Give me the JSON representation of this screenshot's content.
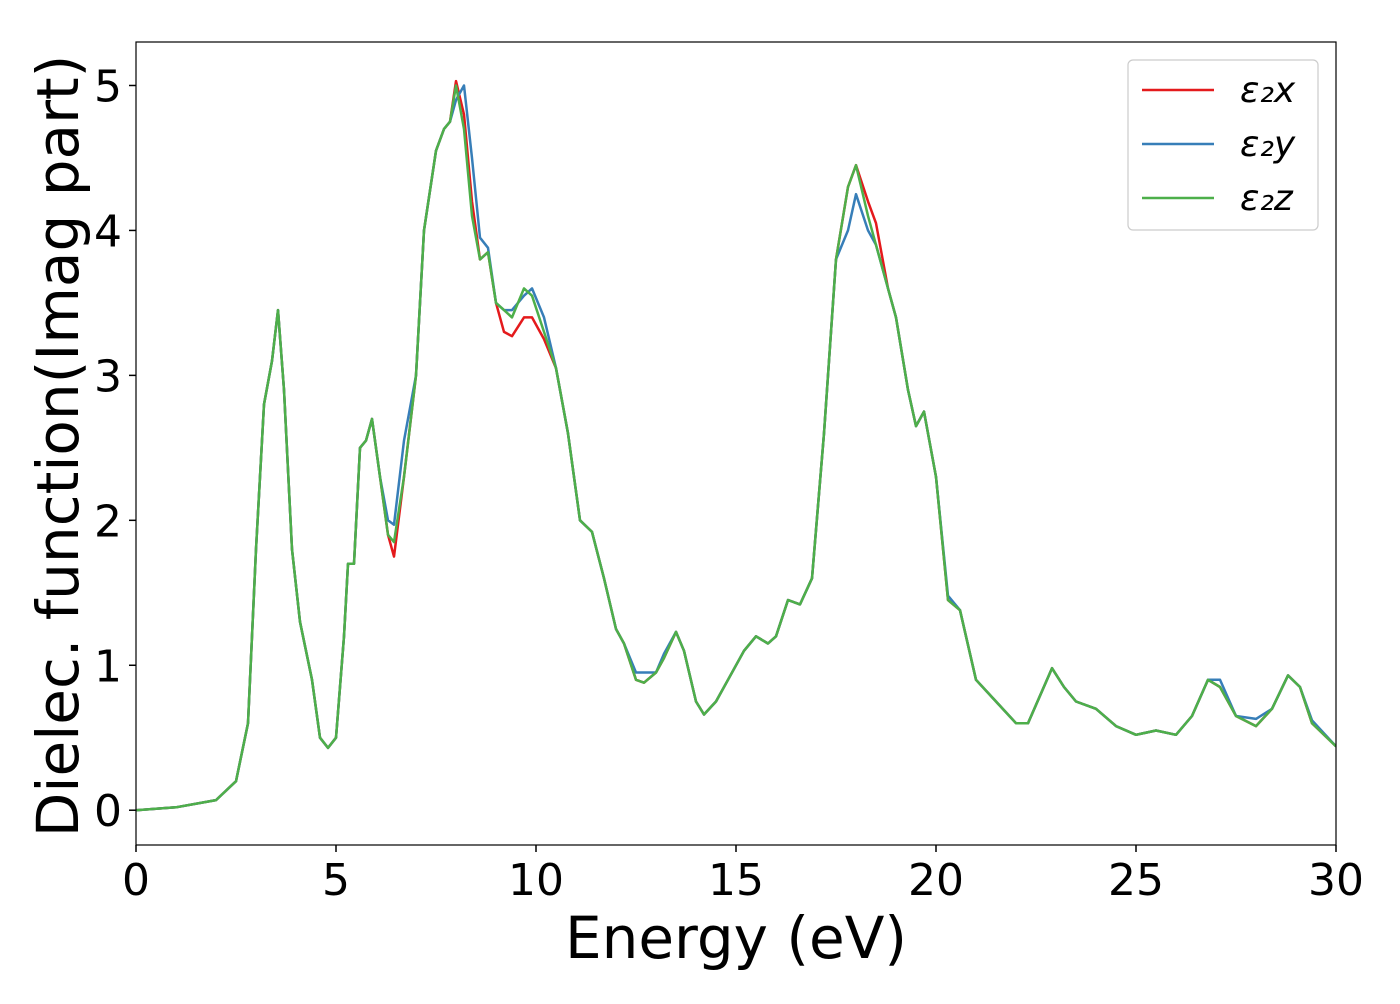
{
  "chart_data": {
    "type": "line",
    "x_label": "Energy (eV)",
    "y_label": "Dielec. function(Imag part)",
    "x": [
      0,
      1,
      2,
      2.5,
      2.8,
      3,
      3.2,
      3.4,
      3.55,
      3.7,
      3.9,
      4.1,
      4.4,
      4.6,
      4.8,
      5,
      5.2,
      5.3,
      5.45,
      5.6,
      5.75,
      5.9,
      6.1,
      6.3,
      6.45,
      6.7,
      7,
      7.2,
      7.5,
      7.7,
      7.85,
      8,
      8.2,
      8.4,
      8.6,
      8.8,
      9,
      9.2,
      9.4,
      9.7,
      9.9,
      10.2,
      10.5,
      10.8,
      11.1,
      11.4,
      11.7,
      12,
      12.2,
      12.5,
      12.7,
      13,
      13.2,
      13.5,
      13.7,
      14,
      14.2,
      14.5,
      14.8,
      15.2,
      15.5,
      15.8,
      16,
      16.3,
      16.6,
      16.9,
      17.2,
      17.5,
      17.8,
      18,
      18.3,
      18.5,
      18.8,
      19,
      19.3,
      19.5,
      19.7,
      20,
      20.3,
      20.6,
      21,
      21.5,
      22,
      22.3,
      22.9,
      23.2,
      23.5,
      24,
      24.5,
      25,
      25.5,
      26,
      26.4,
      26.8,
      27.1,
      27.5,
      28,
      28.4,
      28.8,
      29.1,
      29.4,
      30
    ],
    "series": [
      {
        "name": "ε₂x",
        "color": "#e41a1c",
        "values": [
          0,
          0.02,
          0.07,
          0.2,
          0.6,
          1.8,
          2.8,
          3.1,
          3.45,
          2.9,
          1.8,
          1.3,
          0.9,
          0.5,
          0.43,
          0.5,
          1.2,
          1.7,
          1.7,
          2.5,
          2.55,
          2.7,
          2.3,
          1.9,
          1.75,
          2.3,
          3.0,
          4.0,
          4.55,
          4.7,
          4.75,
          5.03,
          4.8,
          4.2,
          3.8,
          3.85,
          3.5,
          3.3,
          3.27,
          3.4,
          3.4,
          3.25,
          3.05,
          2.6,
          2.0,
          1.92,
          1.6,
          1.25,
          1.15,
          0.9,
          0.88,
          0.95,
          1.05,
          1.23,
          1.1,
          0.75,
          0.66,
          0.75,
          0.9,
          1.1,
          1.2,
          1.15,
          1.2,
          1.45,
          1.42,
          1.6,
          2.6,
          3.8,
          4.3,
          4.45,
          4.2,
          4.05,
          3.6,
          3.4,
          2.9,
          2.65,
          2.75,
          2.3,
          1.45,
          1.38,
          0.9,
          0.75,
          0.6,
          0.6,
          0.98,
          0.85,
          0.75,
          0.7,
          0.58,
          0.52,
          0.55,
          0.52,
          0.65,
          0.9,
          0.85,
          0.65,
          0.58,
          0.7,
          0.93,
          0.85,
          0.6,
          0.44
        ]
      },
      {
        "name": "ε₂y",
        "color": "#377eb8",
        "values": [
          0,
          0.02,
          0.07,
          0.2,
          0.6,
          1.8,
          2.8,
          3.1,
          3.45,
          2.9,
          1.8,
          1.3,
          0.9,
          0.5,
          0.43,
          0.5,
          1.2,
          1.7,
          1.7,
          2.5,
          2.55,
          2.7,
          2.3,
          2.0,
          1.97,
          2.55,
          3.0,
          4.0,
          4.55,
          4.7,
          4.75,
          4.9,
          5.0,
          4.5,
          3.95,
          3.88,
          3.5,
          3.45,
          3.45,
          3.55,
          3.6,
          3.4,
          3.05,
          2.6,
          2.0,
          1.92,
          1.6,
          1.25,
          1.15,
          0.95,
          0.95,
          0.95,
          1.08,
          1.23,
          1.1,
          0.75,
          0.66,
          0.75,
          0.9,
          1.1,
          1.2,
          1.15,
          1.2,
          1.45,
          1.42,
          1.6,
          2.6,
          3.8,
          4.0,
          4.25,
          4.0,
          3.9,
          3.6,
          3.4,
          2.9,
          2.65,
          2.75,
          2.3,
          1.48,
          1.38,
          0.9,
          0.75,
          0.6,
          0.6,
          0.98,
          0.85,
          0.75,
          0.7,
          0.58,
          0.52,
          0.55,
          0.52,
          0.65,
          0.9,
          0.9,
          0.65,
          0.63,
          0.7,
          0.93,
          0.85,
          0.62,
          0.44
        ]
      },
      {
        "name": "ε₂z",
        "color": "#4daf4a",
        "values": [
          0,
          0.02,
          0.07,
          0.2,
          0.6,
          1.8,
          2.8,
          3.1,
          3.45,
          2.9,
          1.8,
          1.3,
          0.9,
          0.5,
          0.43,
          0.5,
          1.2,
          1.7,
          1.7,
          2.5,
          2.55,
          2.7,
          2.3,
          1.9,
          1.85,
          2.3,
          3.0,
          4.0,
          4.55,
          4.7,
          4.75,
          5.0,
          4.7,
          4.1,
          3.8,
          3.85,
          3.5,
          3.45,
          3.4,
          3.6,
          3.55,
          3.3,
          3.05,
          2.6,
          2.0,
          1.92,
          1.6,
          1.25,
          1.15,
          0.9,
          0.88,
          0.95,
          1.05,
          1.23,
          1.1,
          0.75,
          0.66,
          0.75,
          0.9,
          1.1,
          1.2,
          1.15,
          1.2,
          1.45,
          1.42,
          1.6,
          2.6,
          3.8,
          4.3,
          4.45,
          4.1,
          3.9,
          3.6,
          3.4,
          2.9,
          2.65,
          2.75,
          2.3,
          1.45,
          1.38,
          0.9,
          0.75,
          0.6,
          0.6,
          0.98,
          0.85,
          0.75,
          0.7,
          0.58,
          0.52,
          0.55,
          0.52,
          0.65,
          0.9,
          0.85,
          0.65,
          0.58,
          0.7,
          0.93,
          0.85,
          0.6,
          0.44
        ]
      }
    ],
    "xlim": [
      0,
      30
    ],
    "xticks": [
      0,
      5,
      10,
      15,
      20,
      25,
      30
    ],
    "ylim": [
      -0.24,
      5.3
    ],
    "yticks": [
      0,
      1,
      2,
      3,
      4,
      5
    ],
    "legend": "upper-right",
    "grid": false
  }
}
